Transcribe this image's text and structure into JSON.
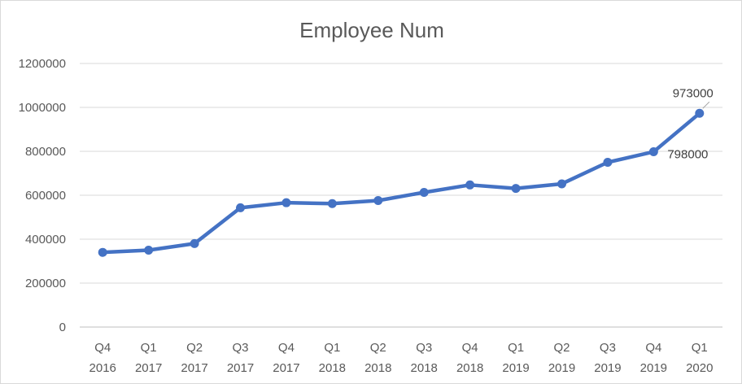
{
  "chart_data": {
    "type": "line",
    "title": "Employee Num",
    "xlabel": "",
    "ylabel": "",
    "ylim": [
      0,
      1200000
    ],
    "ytick_step": 200000,
    "grid": true,
    "legend": "none",
    "categories": [
      [
        "Q4",
        "2016"
      ],
      [
        "Q1",
        "2017"
      ],
      [
        "Q2",
        "2017"
      ],
      [
        "Q3",
        "2017"
      ],
      [
        "Q4",
        "2017"
      ],
      [
        "Q1",
        "2018"
      ],
      [
        "Q2",
        "2018"
      ],
      [
        "Q3",
        "2018"
      ],
      [
        "Q4",
        "2018"
      ],
      [
        "Q1",
        "2019"
      ],
      [
        "Q2",
        "2019"
      ],
      [
        "Q3",
        "2019"
      ],
      [
        "Q4",
        "2019"
      ],
      [
        "Q1",
        "2020"
      ]
    ],
    "series": [
      {
        "values": [
          340000,
          350000,
          380000,
          543000,
          566000,
          562000,
          576000,
          613000,
          647000,
          631000,
          652000,
          750000,
          798000,
          973000
        ],
        "color": "#4472C4"
      }
    ],
    "data_labels": [
      {
        "index": 12,
        "text": "798000"
      },
      {
        "index": 13,
        "text": "973000"
      }
    ]
  }
}
